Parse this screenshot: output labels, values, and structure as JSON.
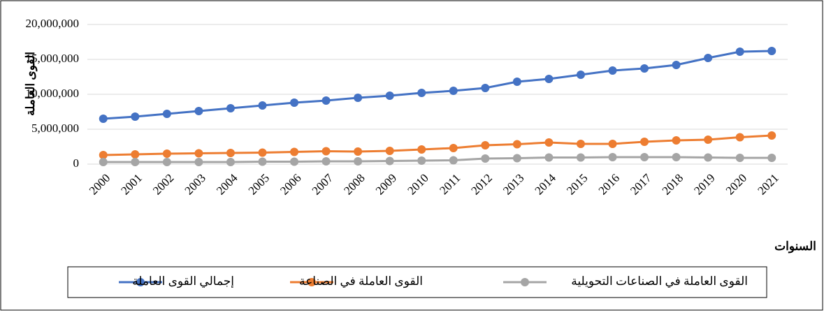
{
  "chart_data": {
    "type": "line",
    "y_label": "القوى العاملة",
    "x_label": "السنوات",
    "categories": [
      "2000",
      "2001",
      "2002",
      "2003",
      "2004",
      "2005",
      "2006",
      "2007",
      "2008",
      "2009",
      "2010",
      "2011",
      "2012",
      "2013",
      "2014",
      "2015",
      "2016",
      "2017",
      "2018",
      "2019",
      "2020",
      "2021"
    ],
    "series": [
      {
        "name": "إجمالي القوى العاملة",
        "color": "#4472c4",
        "values": [
          6500000,
          6800000,
          7200000,
          7600000,
          8000000,
          8400000,
          8800000,
          9100000,
          9500000,
          9800000,
          10200000,
          10500000,
          10900000,
          11800000,
          12200000,
          12800000,
          13400000,
          13700000,
          14200000,
          15200000,
          16100000,
          16200000
        ]
      },
      {
        "name": "القوى العاملة في الصناعة",
        "color": "#ed7d31",
        "values": [
          1300000,
          1400000,
          1500000,
          1550000,
          1600000,
          1650000,
          1750000,
          1850000,
          1800000,
          1900000,
          2100000,
          2300000,
          2700000,
          2850000,
          3100000,
          2900000,
          2900000,
          3200000,
          3400000,
          3500000,
          3850000,
          4100000
        ]
      },
      {
        "name": "القوى العاملة في الصناعات التحويلية",
        "color": "#a5a5a5",
        "values": [
          300000,
          300000,
          300000,
          300000,
          300000,
          350000,
          350000,
          400000,
          400000,
          450000,
          500000,
          550000,
          800000,
          850000,
          950000,
          950000,
          1000000,
          1000000,
          1000000,
          950000,
          900000,
          900000
        ]
      }
    ],
    "ylim": [
      0,
      20000000
    ],
    "yticks": [
      0,
      {
        "value": 5000000,
        "label": "5,000,000"
      },
      {
        "value": 10000000,
        "label": "10,000,000"
      },
      {
        "value": 15000000,
        "label": "15,000,000"
      },
      {
        "value": 20000000,
        "label": "20,000,000"
      }
    ],
    "grid": true,
    "legend": "bottom"
  }
}
